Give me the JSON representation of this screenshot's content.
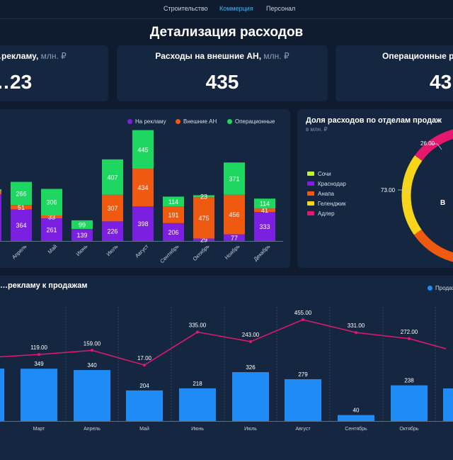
{
  "nav": {
    "tabs": [
      "Строительство",
      "Коммерция",
      "Персонал"
    ],
    "active": 1
  },
  "page_title": "Детализация расходов",
  "kpis": [
    {
      "label": "…рекламу,",
      "unit": "млн. ₽",
      "value": "…23"
    },
    {
      "label": "Расходы на внешние АН,",
      "unit": "млн. ₽",
      "value": "435"
    },
    {
      "label": "Операционные рас…",
      "unit": "",
      "value": "43…"
    }
  ],
  "colors": {
    "advertising": "#7b1fe0",
    "external": "#f05a10",
    "operational": "#1ed760",
    "line": "#e6176f",
    "bars": "#1f8bf5"
  },
  "monthly_chart": {
    "legend": [
      "На рекламу",
      "Внешние АН",
      "Операционные"
    ]
  },
  "dept_chart": {
    "title": "Доля расходов по отделам продаж",
    "subtitle": "в млн. ₽",
    "legend": [
      {
        "name": "Сочи",
        "color": "#c6ef3a"
      },
      {
        "name": "Краснодар",
        "color": "#7b1fe0"
      },
      {
        "name": "Анапа",
        "color": "#f05a10"
      },
      {
        "name": "Геленджик",
        "color": "#f7d51b"
      },
      {
        "name": "Адлер",
        "color": "#e6176f"
      }
    ],
    "center_text": "В"
  },
  "ratio_chart": {
    "title": "…рекламу к продажам",
    "legend": "Продаж…"
  },
  "chart_data": [
    {
      "type": "bar",
      "stacked": true,
      "categories": [
        "",
        "Апрель",
        "Май",
        "Июнь",
        "Июль",
        "Август",
        "Сентябрь",
        "Октябрь",
        "Ноябрь",
        "Декабрь"
      ],
      "series": [
        {
          "name": "На рекламу",
          "values": [
            null,
            364,
            261,
            139,
            226,
            398,
            206,
            29,
            77,
            333
          ]
        },
        {
          "name": "Внешние АН",
          "values": [
            null,
            51,
            33,
            null,
            307,
            434,
            191,
            475,
            456,
            41
          ]
        },
        {
          "name": "Операционные",
          "values": [
            null,
            266,
            306,
            99,
            407,
            445,
            114,
            23,
            371,
            114
          ]
        }
      ],
      "legend_position": "top-right"
    },
    {
      "type": "pie",
      "donut": true,
      "slices": [
        {
          "label": "Адлер",
          "value": 26.0
        },
        {
          "label": "Геленджик",
          "value": 73.0
        },
        {
          "label": "Анапа",
          "value": null
        }
      ]
    },
    {
      "type": "bar",
      "categories": [
        "",
        "Март",
        "Апрель",
        "Май",
        "Июнь",
        "Июль",
        "Август",
        "Сентябрь",
        "Октябрь",
        ""
      ],
      "series": [
        {
          "name": "Продаж…",
          "values": [
            null,
            349,
            340,
            204,
            218,
            326,
            279,
            40,
            238,
            null
          ]
        },
        {
          "name": "",
          "type": "line",
          "values": [
            null,
            119.0,
            159.0,
            17.0,
            335.0,
            243.0,
            455.0,
            331.0,
            272.0,
            null
          ]
        }
      ],
      "legend_position": "top-right"
    }
  ]
}
